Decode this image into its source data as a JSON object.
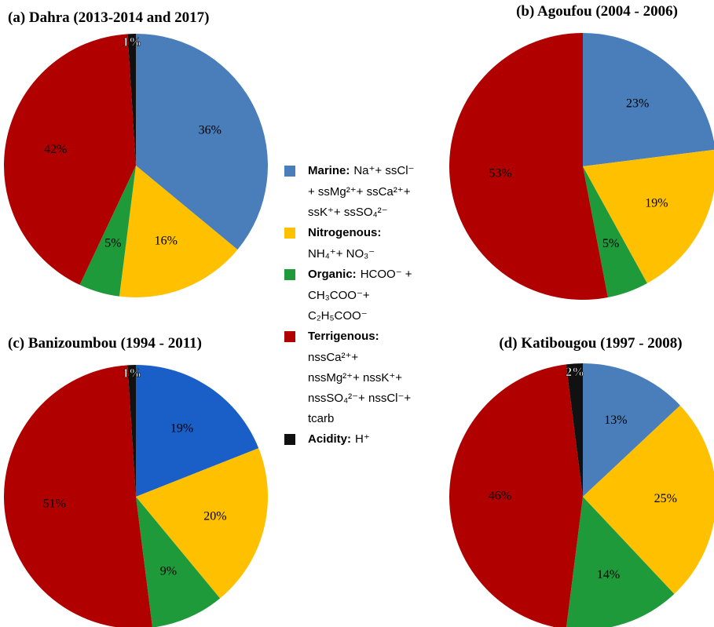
{
  "chart_data": [
    {
      "type": "pie",
      "title": "(a) Dahra (2013-2014 and 2017)",
      "values": [
        36,
        16,
        5,
        42,
        1
      ],
      "value_labels": [
        "36%",
        "16%",
        "5%",
        "42%",
        "1%"
      ],
      "colors": [
        "#4a7ebb",
        "#ffc000",
        "#1e9a3a",
        "#b00000",
        "#111111"
      ]
    },
    {
      "type": "pie",
      "title": "(b) Agoufou (2004 - 2006)",
      "values": [
        23,
        19,
        5,
        53
      ],
      "value_labels": [
        "23%",
        "19%",
        "5%",
        "53%"
      ],
      "colors": [
        "#4a7ebb",
        "#ffc000",
        "#1e9a3a",
        "#b00000"
      ]
    },
    {
      "type": "pie",
      "title": "(c) Banizoumbou (1994 - 2011)",
      "values": [
        19,
        20,
        9,
        51,
        1
      ],
      "value_labels": [
        "19%",
        "20%",
        "9%",
        "51%",
        "1%"
      ],
      "colors": [
        "#1a5fc8",
        "#ffc000",
        "#1e9a3a",
        "#b00000",
        "#111111"
      ]
    },
    {
      "type": "pie",
      "title": "(d) Katibougou (1997 - 2008)",
      "values": [
        13,
        25,
        14,
        46,
        2
      ],
      "value_labels": [
        "13%",
        "25%",
        "14%",
        "46%",
        "2%"
      ],
      "colors": [
        "#4a7ebb",
        "#ffc000",
        "#1e9a3a",
        "#b00000",
        "#111111"
      ]
    }
  ],
  "legend": [
    {
      "name": "Marine:",
      "color": "#4a7ebb",
      "text": "Na⁺+ ssCl⁻",
      "lines": [
        "+ ssMg²⁺+ ssCa²⁺+",
        "ssK⁺+ ssSO₄²⁻"
      ]
    },
    {
      "name": "Nitrogenous:",
      "color": "#ffc000",
      "lines": [
        "NH₄⁺+ NO₃⁻"
      ]
    },
    {
      "name": "Organic:",
      "color": "#1e9a3a",
      "text": "HCOO⁻ +",
      "lines": [
        "CH₃COO⁻+",
        "C₂H₅COO⁻"
      ]
    },
    {
      "name": "Terrigenous:",
      "color": "#b00000",
      "lines": [
        "nssCa²⁺+",
        "nssMg²⁺+ nssK⁺+",
        "nssSO₄²⁻+ nssCl⁻+",
        "tcarb"
      ]
    },
    {
      "name": "Acidity:",
      "color": "#111111",
      "text": "H⁺"
    }
  ]
}
